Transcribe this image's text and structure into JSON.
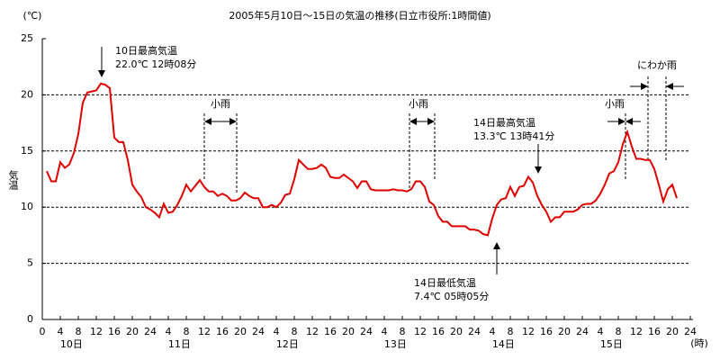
{
  "chart_data": {
    "type": "line",
    "title": "2005年5月10日～15日の気温の推移(日立市役所:1時間値)",
    "y_label": "気温",
    "y_unit": "(℃)",
    "x_unit": "(時)",
    "color": "#e00000",
    "x": [
      1,
      2,
      3,
      4,
      5,
      6,
      7,
      8,
      9,
      10,
      11,
      12,
      13,
      14,
      15,
      16,
      17,
      18,
      19,
      20,
      21,
      22,
      23,
      24,
      25,
      26,
      27,
      28,
      29,
      30,
      31,
      32,
      33,
      34,
      35,
      36,
      37,
      38,
      39,
      40,
      41,
      42,
      43,
      44,
      45,
      46,
      47,
      48,
      49,
      50,
      51,
      52,
      53,
      54,
      55,
      56,
      57,
      58,
      59,
      60,
      61,
      62,
      63,
      64,
      65,
      66,
      67,
      68,
      69,
      70,
      71,
      72,
      73,
      74,
      75,
      76,
      77,
      78,
      79,
      80,
      81,
      82,
      83,
      84,
      85,
      86,
      87,
      88,
      89,
      90,
      91,
      92,
      93,
      94,
      95,
      96,
      97,
      98,
      99,
      100,
      101,
      102,
      103,
      104,
      105,
      106,
      107,
      108,
      109,
      110,
      111,
      112,
      113,
      114,
      115,
      116,
      117,
      118,
      119,
      120,
      121,
      122,
      123,
      124,
      125,
      126,
      127,
      128,
      129,
      130,
      131,
      132,
      133,
      134,
      135,
      136,
      137,
      138,
      139,
      140,
      141
    ],
    "values": [
      13.2,
      12.3,
      12.3,
      14.0,
      13.5,
      13.8,
      14.8,
      16.5,
      19.3,
      20.2,
      20.3,
      20.4,
      21.0,
      20.9,
      20.6,
      16.2,
      15.8,
      15.8,
      14.2,
      12.0,
      11.4,
      10.9,
      10.0,
      9.8,
      9.5,
      9.1,
      10.3,
      9.5,
      9.6,
      10.2,
      11.0,
      12.0,
      11.4,
      11.9,
      12.4,
      11.8,
      11.4,
      11.4,
      11.0,
      11.2,
      11.0,
      10.6,
      10.6,
      10.8,
      11.3,
      11.0,
      10.8,
      10.8,
      10.0,
      10.0,
      10.2,
      10.0,
      10.4,
      11.1,
      11.2,
      12.5,
      14.2,
      13.8,
      13.4,
      13.4,
      13.5,
      13.8,
      13.5,
      12.7,
      12.6,
      12.6,
      12.9,
      12.6,
      12.3,
      11.7,
      12.3,
      12.3,
      11.6,
      11.5,
      11.5,
      11.5,
      11.5,
      11.6,
      11.5,
      11.5,
      11.4,
      11.6,
      12.3,
      12.3,
      11.8,
      10.5,
      10.2,
      9.2,
      8.7,
      8.7,
      8.3,
      8.3,
      8.3,
      8.3,
      8.0,
      8.0,
      7.9,
      7.6,
      7.5,
      9.0,
      10.2,
      10.7,
      10.8,
      11.8,
      11.0,
      11.8,
      11.9,
      12.7,
      12.2,
      11.0,
      10.2,
      9.6,
      8.7,
      9.1,
      9.1,
      9.6,
      9.6,
      9.6,
      9.8,
      10.2,
      10.3,
      10.3,
      10.6,
      11.2,
      12.0,
      13.0,
      13.2,
      14.0,
      15.6,
      16.7,
      15.4,
      14.3,
      14.3,
      14.2,
      14.2,
      13.4,
      12.0,
      10.5,
      11.6,
      12.0,
      10.8
    ],
    "xlim": [
      0,
      144
    ],
    "ylim": [
      0,
      25
    ],
    "yticks": [
      0,
      5,
      10,
      15,
      20,
      25
    ],
    "xticks": [
      0,
      4,
      8,
      12,
      16,
      20,
      24,
      {
        "value": 28,
        "label": "4"
      },
      {
        "value": 32,
        "label": "8"
      },
      {
        "value": 36,
        "label": "12"
      },
      {
        "value": 40,
        "label": "16"
      },
      {
        "value": 44,
        "label": "20"
      },
      {
        "value": 48,
        "label": "24"
      },
      {
        "value": 52,
        "label": "4"
      },
      {
        "value": 56,
        "label": "8"
      },
      {
        "value": 60,
        "label": "12"
      },
      {
        "value": 64,
        "label": "16"
      },
      {
        "value": 68,
        "label": "20"
      },
      {
        "value": 72,
        "label": "24"
      },
      {
        "value": 76,
        "label": "4"
      },
      {
        "value": 80,
        "label": "8"
      },
      {
        "value": 84,
        "label": "12"
      },
      {
        "value": 88,
        "label": "16"
      },
      {
        "value": 92,
        "label": "20"
      },
      {
        "value": 96,
        "label": "24"
      },
      {
        "value": 100,
        "label": "4"
      },
      {
        "value": 104,
        "label": "8"
      },
      {
        "value": 108,
        "label": "12"
      },
      {
        "value": 112,
        "label": "16"
      },
      {
        "value": 116,
        "label": "20"
      },
      {
        "value": 120,
        "label": "24"
      },
      {
        "value": 124,
        "label": "4"
      },
      {
        "value": 128,
        "label": "8"
      },
      {
        "value": 132,
        "label": "12"
      },
      {
        "value": 136,
        "label": "16"
      },
      {
        "value": 140,
        "label": "20"
      },
      {
        "value": 144,
        "label": "24"
      }
    ],
    "days": [
      "10日",
      "11日",
      "12日",
      "13日",
      "14日",
      "15日"
    ],
    "grid": true,
    "annotations": [
      "10日最高気温",
      "22.0℃ 12時08分",
      "小雨",
      "小雨",
      "14日最高気温",
      "13.3℃ 13時41分",
      "小雨",
      "にわか雨",
      "14日最低気温",
      "7.4℃ 05時05分"
    ]
  }
}
